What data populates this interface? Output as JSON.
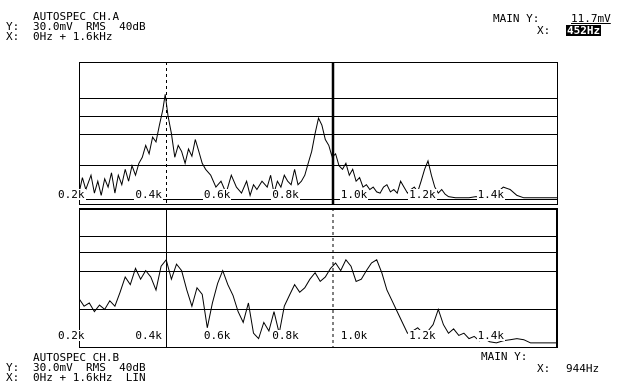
{
  "top": {
    "title": "AUTOSPEC CH.A",
    "y_row": "30.0mV  RMS  40dB",
    "x_row": "0Hz + 1.6kHz",
    "y_label": "Y:",
    "x_label": "X:",
    "main_y_label": "MAIN Y:",
    "main_y_value": "11.7mV",
    "x_readout_label": "X:",
    "x_readout_value": "452Hz"
  },
  "bottom": {
    "title": "AUTOSPEC CH.B",
    "y_row": "30.0mV  RMS  40dB",
    "x_row": "0Hz + 1.6kHz  LIN",
    "y_label": "Y:",
    "x_label": "X:",
    "main_y_label": "MAIN Y:",
    "x_readout_label": "X:",
    "x_readout_value": "944Hz"
  },
  "chart_data": [
    {
      "type": "line",
      "panel": "CH.A",
      "xlim": [
        200,
        1600
      ],
      "x_ticks": [
        "0.2k",
        "0.4k",
        "0.6k",
        "0.8k",
        "1.0k",
        "1.2k",
        "1.4k"
      ],
      "tick_values": [
        200,
        400,
        600,
        800,
        1000,
        1200,
        1400
      ],
      "series": [
        {
          "x": [
            200,
            210,
            220,
            235,
            245,
            255,
            265,
            275,
            285,
            295,
            305,
            315,
            325,
            335,
            345,
            355,
            365,
            375,
            385,
            395,
            405,
            415,
            425,
            435,
            445,
            452,
            460,
            470,
            480,
            490,
            500,
            510,
            520,
            530,
            540,
            550,
            560,
            570,
            585,
            600,
            615,
            630,
            645,
            660,
            675,
            690,
            700,
            710,
            720,
            735,
            750,
            760,
            770,
            780,
            790,
            800,
            810,
            820,
            830,
            840,
            850,
            860,
            870,
            880,
            890,
            900,
            910,
            920,
            930,
            940,
            950,
            960,
            970,
            980,
            990,
            1000,
            1010,
            1020,
            1030,
            1040,
            1050,
            1060,
            1070,
            1080,
            1090,
            1100,
            1110,
            1120,
            1130,
            1140,
            1150,
            1160,
            1170,
            1180,
            1190,
            1200,
            1210,
            1220,
            1230,
            1240,
            1250,
            1260,
            1270,
            1280,
            1300,
            1320,
            1340,
            1360,
            1380,
            1400,
            1420,
            1440,
            1460,
            1480,
            1500,
            1520,
            1540,
            1560,
            1580,
            1600
          ],
          "y": [
            0.05,
            0.18,
            0.08,
            0.2,
            0.05,
            0.15,
            0.03,
            0.17,
            0.1,
            0.22,
            0.05,
            0.2,
            0.12,
            0.25,
            0.15,
            0.28,
            0.2,
            0.3,
            0.35,
            0.45,
            0.38,
            0.52,
            0.48,
            0.62,
            0.75,
            0.88,
            0.7,
            0.55,
            0.35,
            0.45,
            0.4,
            0.3,
            0.42,
            0.36,
            0.5,
            0.4,
            0.3,
            0.25,
            0.2,
            0.1,
            0.15,
            0.05,
            0.2,
            0.1,
            0.05,
            0.15,
            0.03,
            0.12,
            0.08,
            0.15,
            0.1,
            0.2,
            0.05,
            0.15,
            0.1,
            0.2,
            0.15,
            0.12,
            0.25,
            0.12,
            0.15,
            0.2,
            0.3,
            0.4,
            0.55,
            0.68,
            0.62,
            0.5,
            0.45,
            0.35,
            0.38,
            0.28,
            0.25,
            0.3,
            0.2,
            0.25,
            0.15,
            0.18,
            0.1,
            0.12,
            0.08,
            0.1,
            0.06,
            0.05,
            0.1,
            0.12,
            0.06,
            0.08,
            0.05,
            0.15,
            0.1,
            0.05,
            0.08,
            0.1,
            0.06,
            0.15,
            0.25,
            0.32,
            0.2,
            0.1,
            0.05,
            0.08,
            0.04,
            0.02,
            0.01,
            0.01,
            0.01,
            0.02,
            0.01,
            0.02,
            0.05,
            0.1,
            0.08,
            0.03,
            0.01,
            0.01,
            0.01,
            0.01,
            0.01,
            0.01
          ]
        }
      ]
    },
    {
      "type": "line",
      "panel": "CH.B",
      "xlim": [
        200,
        1600
      ],
      "x_ticks": [
        "0.2k",
        "0.4k",
        "0.6k",
        "0.8k",
        "1.0k",
        "1.2k",
        "1.4k"
      ],
      "tick_values": [
        200,
        400,
        600,
        800,
        1000,
        1200,
        1400
      ],
      "series": [
        {
          "x": [
            200,
            215,
            230,
            245,
            260,
            275,
            290,
            305,
            320,
            335,
            350,
            365,
            380,
            395,
            410,
            425,
            440,
            455,
            470,
            485,
            500,
            515,
            530,
            545,
            560,
            575,
            590,
            605,
            620,
            635,
            650,
            665,
            680,
            695,
            710,
            725,
            740,
            755,
            770,
            785,
            800,
            815,
            830,
            845,
            860,
            875,
            890,
            905,
            920,
            935,
            950,
            965,
            980,
            995,
            1010,
            1025,
            1040,
            1055,
            1070,
            1085,
            1100,
            1115,
            1130,
            1145,
            1160,
            1175,
            1190,
            1205,
            1220,
            1235,
            1250,
            1265,
            1280,
            1295,
            1310,
            1325,
            1340,
            1355,
            1370,
            1385,
            1400,
            1420,
            1440,
            1460,
            1480,
            1500,
            1520,
            1540,
            1560,
            1580,
            1600
          ],
          "y": [
            0.42,
            0.35,
            0.38,
            0.3,
            0.36,
            0.32,
            0.4,
            0.35,
            0.48,
            0.62,
            0.55,
            0.7,
            0.6,
            0.68,
            0.62,
            0.5,
            0.72,
            0.78,
            0.6,
            0.74,
            0.68,
            0.5,
            0.35,
            0.52,
            0.46,
            0.15,
            0.38,
            0.56,
            0.68,
            0.55,
            0.45,
            0.3,
            0.2,
            0.38,
            0.1,
            0.05,
            0.2,
            0.12,
            0.3,
            0.1,
            0.35,
            0.45,
            0.55,
            0.48,
            0.52,
            0.6,
            0.66,
            0.58,
            0.62,
            0.7,
            0.75,
            0.68,
            0.78,
            0.72,
            0.58,
            0.6,
            0.68,
            0.75,
            0.78,
            0.66,
            0.5,
            0.4,
            0.3,
            0.2,
            0.1,
            0.12,
            0.15,
            0.1,
            0.12,
            0.18,
            0.32,
            0.18,
            0.1,
            0.14,
            0.08,
            0.1,
            0.05,
            0.07,
            0.03,
            0.05,
            0.02,
            0.01,
            0.03,
            0.04,
            0.05,
            0.04,
            0.01,
            0.01,
            0.01,
            0.01,
            0.01
          ]
        }
      ]
    }
  ]
}
